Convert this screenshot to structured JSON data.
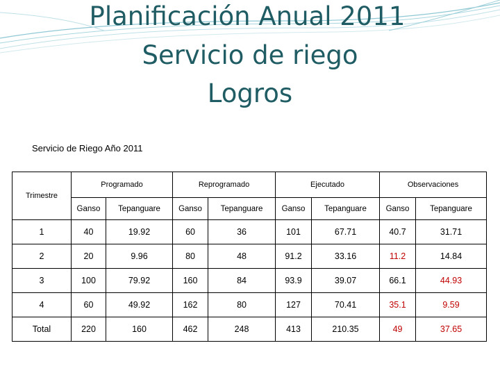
{
  "titles": [
    "Planificación Anual 2011",
    "Servicio de riego",
    "Logros"
  ],
  "caption": "Servicio de Riego Año 2011",
  "table": {
    "row_header": "Trimestre",
    "groups": [
      "Programado",
      "Reprogramado",
      "Ejecutado",
      "Observaciones"
    ],
    "subheaders": [
      "Ganso",
      "Tepanguare",
      "Ganso",
      "Tepanguare",
      "Ganso",
      "Tepanguare",
      "Ganso",
      "Tepanguare"
    ],
    "rows": [
      {
        "label": "1",
        "values": [
          "40",
          "19.92",
          "60",
          "36",
          "101",
          "67.71",
          "40.7",
          "31.71"
        ]
      },
      {
        "label": "2",
        "values": [
          "20",
          "9.96",
          "80",
          "48",
          "91.2",
          "33.16",
          "11.2",
          "14.84"
        ]
      },
      {
        "label": "3",
        "values": [
          "100",
          "79.92",
          "160",
          "84",
          "93.9",
          "39.07",
          "66.1",
          "44.93"
        ]
      },
      {
        "label": "4",
        "values": [
          "60",
          "49.92",
          "162",
          "80",
          "127",
          "70.41",
          "35.1",
          "9.59"
        ]
      },
      {
        "label": "Total",
        "values": [
          "220",
          "160",
          "462",
          "248",
          "413",
          "210.35",
          "49",
          "37.65"
        ]
      }
    ],
    "highlight_color": "#c00000"
  }
}
